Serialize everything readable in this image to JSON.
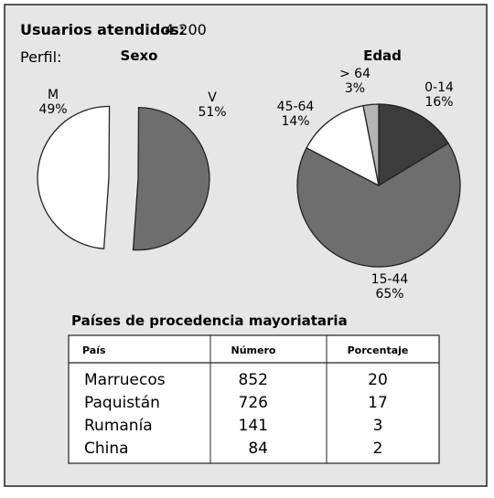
{
  "header": {
    "label": "Usuarios atendidos:",
    "value": "4.200",
    "profile": "Perfil:"
  },
  "chart_data": [
    {
      "type": "pie",
      "title": "Sexo",
      "categories": [
        "M",
        "V"
      ],
      "values": [
        49,
        51
      ],
      "value_labels": [
        "49%",
        "51%"
      ],
      "colors": [
        "#ffffff",
        "#6e6e6e"
      ]
    },
    {
      "type": "pie",
      "title": "Edad",
      "categories": [
        "0-14",
        "15-44",
        "45-64",
        "> 64"
      ],
      "values": [
        16,
        65,
        14,
        3
      ],
      "value_labels": [
        "16%",
        "65%",
        "14%",
        "3%"
      ],
      "colors": [
        "#3c3c3c",
        "#6e6e6e",
        "#ffffff",
        "#b4b4b4"
      ]
    }
  ],
  "table": {
    "title": "Países de procedencia mayoriataria",
    "headers": [
      "País",
      "Número",
      "Porcentaje"
    ],
    "rows": [
      [
        "Marruecos",
        852,
        20
      ],
      [
        "Paquistán",
        726,
        17
      ],
      [
        "Rumanía",
        141,
        3
      ],
      [
        "China",
        84,
        2
      ]
    ]
  }
}
